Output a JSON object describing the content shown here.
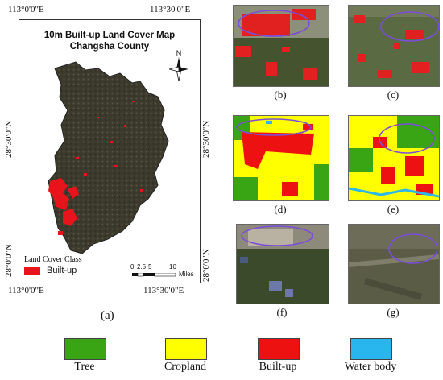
{
  "main_map": {
    "title_line1": "10m Built-up Land Cover Map",
    "title_line2": "Changsha County",
    "north_label": "N",
    "top_ticks": [
      "113°0'0\"E",
      "113°30'0\"E"
    ],
    "bottom_ticks": [
      "113°0'0\"E",
      "113°30'0\"E"
    ],
    "left_ticks": [
      "28°30'0\"N",
      "28°0'0\"N"
    ],
    "right_ticks": [
      "28°30'0\"N",
      "28°0'0\"N"
    ],
    "legend_title": "Land Cover Class",
    "legend_item": "Built-up",
    "scale_labels": [
      "0",
      "2.5",
      "5",
      "10"
    ],
    "scale_unit": "Miles",
    "panel_label": "(a)",
    "colors": {
      "builtup": "#e8141b",
      "terrain": "#3b3a2c"
    }
  },
  "sub_panels": [
    {
      "id": "b",
      "label": "(b)",
      "kind": "satellite-red"
    },
    {
      "id": "c",
      "label": "(c)",
      "kind": "satellite-red"
    },
    {
      "id": "d",
      "label": "(d)",
      "kind": "classified"
    },
    {
      "id": "e",
      "label": "(e)",
      "kind": "classified"
    },
    {
      "id": "f",
      "label": "(f)",
      "kind": "satellite"
    },
    {
      "id": "g",
      "label": "(g)",
      "kind": "satellite"
    }
  ],
  "legend": [
    {
      "label": "Tree",
      "color": "#3aa514"
    },
    {
      "label": "Cropland",
      "color": "#ffff00"
    },
    {
      "label": "Built-up",
      "color": "#ee1111"
    },
    {
      "label": "Water body",
      "color": "#29b6ef"
    }
  ]
}
